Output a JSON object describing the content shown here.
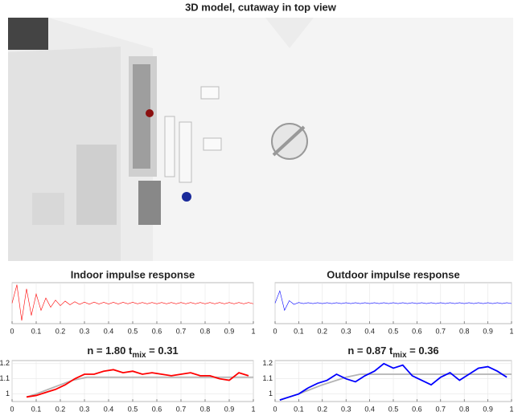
{
  "render": {
    "title": "3D model, cutaway in top view"
  },
  "chart_data": [
    {
      "type": "line",
      "title": "Indoor impulse response",
      "color": "#ff0000",
      "x": [
        0,
        0.02,
        0.04,
        0.06,
        0.08,
        0.1,
        0.12,
        0.14,
        0.16,
        0.18,
        0.2,
        0.22,
        0.24,
        0.26,
        0.28,
        0.3,
        0.32,
        0.34,
        0.36,
        0.38,
        0.4,
        0.42,
        0.44,
        0.46,
        0.48,
        0.5,
        0.52,
        0.54,
        0.56,
        0.58,
        0.6,
        0.62,
        0.64,
        0.66,
        0.68,
        0.7,
        0.72,
        0.74,
        0.76,
        0.78,
        0.8,
        0.82,
        0.84,
        0.86,
        0.88,
        0.9,
        0.92,
        0.94,
        0.96,
        0.98,
        1
      ],
      "values": [
        0,
        0.9,
        -0.85,
        0.7,
        -0.6,
        0.45,
        -0.35,
        0.25,
        -0.2,
        0.15,
        -0.12,
        0.1,
        -0.08,
        0.07,
        -0.06,
        0.05,
        -0.05,
        0.05,
        -0.04,
        0.04,
        -0.04,
        0.04,
        -0.04,
        0.04,
        -0.03,
        0.04,
        -0.03,
        0.03,
        -0.03,
        0.03,
        -0.03,
        0.03,
        -0.03,
        0.03,
        -0.03,
        0.03,
        -0.03,
        0.03,
        -0.03,
        0.03,
        -0.03,
        0.03,
        -0.03,
        0.03,
        -0.03,
        0.03,
        -0.03,
        0.03,
        -0.03,
        0.03,
        -0.03
      ],
      "xlim": [
        0,
        1
      ],
      "ylim": [
        -1,
        1
      ],
      "xticks": [
        0,
        0.1,
        0.2,
        0.3,
        0.4,
        0.5,
        0.6,
        0.7,
        0.8,
        0.9,
        1
      ],
      "grid": true
    },
    {
      "type": "line",
      "title": "Outdoor impulse response",
      "color": "#0000ff",
      "x": [
        0,
        0.02,
        0.04,
        0.06,
        0.08,
        0.1,
        0.12,
        0.14,
        0.16,
        0.18,
        0.2,
        0.22,
        0.24,
        0.26,
        0.28,
        0.3,
        0.32,
        0.34,
        0.36,
        0.38,
        0.4,
        0.42,
        0.44,
        0.46,
        0.48,
        0.5,
        0.52,
        0.54,
        0.56,
        0.58,
        0.6,
        0.62,
        0.64,
        0.66,
        0.68,
        0.7,
        0.72,
        0.74,
        0.76,
        0.78,
        0.8,
        0.82,
        0.84,
        0.86,
        0.88,
        0.9,
        0.92,
        0.94,
        0.96,
        0.98,
        1
      ],
      "values": [
        0,
        0.6,
        -0.35,
        0.12,
        -0.06,
        0.03,
        -0.02,
        0.02,
        -0.02,
        0.02,
        -0.02,
        0.02,
        -0.02,
        0.02,
        -0.02,
        0.02,
        -0.02,
        0.02,
        -0.02,
        0.02,
        -0.02,
        0.02,
        -0.02,
        0.02,
        -0.02,
        0.02,
        -0.02,
        0.02,
        -0.02,
        0.02,
        -0.02,
        0.02,
        -0.02,
        0.02,
        -0.02,
        0.02,
        -0.02,
        0.02,
        -0.02,
        0.02,
        -0.02,
        0.02,
        -0.02,
        0.02,
        -0.02,
        0.02,
        -0.02,
        0.02,
        -0.02,
        0.02,
        -0.02
      ],
      "xlim": [
        0,
        1
      ],
      "ylim": [
        -1,
        1
      ],
      "xticks": [
        0,
        0.1,
        0.2,
        0.3,
        0.4,
        0.5,
        0.6,
        0.7,
        0.8,
        0.9,
        1
      ],
      "grid": true
    },
    {
      "type": "line",
      "title_parts": [
        "n = 1.80 t",
        "mix",
        " = 0.31"
      ],
      "series": [
        {
          "color": "#b4b4b4",
          "x": [
            0.06,
            0.1,
            0.15,
            0.2,
            0.25,
            0.31,
            1
          ],
          "values": [
            0.98,
            1.0,
            1.03,
            1.06,
            1.09,
            1.11,
            1.11
          ]
        },
        {
          "color": "#ff0000",
          "x": [
            0.06,
            0.1,
            0.14,
            0.18,
            0.22,
            0.26,
            0.3,
            0.34,
            0.38,
            0.42,
            0.46,
            0.5,
            0.54,
            0.58,
            0.62,
            0.66,
            0.7,
            0.74,
            0.78,
            0.82,
            0.86,
            0.9,
            0.94,
            0.98
          ],
          "values": [
            0.98,
            0.99,
            1.01,
            1.03,
            1.06,
            1.1,
            1.13,
            1.13,
            1.15,
            1.16,
            1.14,
            1.15,
            1.13,
            1.14,
            1.13,
            1.12,
            1.13,
            1.14,
            1.12,
            1.12,
            1.1,
            1.09,
            1.14,
            1.12
          ]
        }
      ],
      "xlim": [
        0,
        1
      ],
      "ylim": [
        0.95,
        1.22
      ],
      "xticks": [
        0,
        0.1,
        0.2,
        0.3,
        0.4,
        0.5,
        0.6,
        0.7,
        0.8,
        0.9,
        1
      ],
      "yticks": [
        1,
        1.1,
        1.2
      ],
      "grid": true
    },
    {
      "type": "line",
      "title_parts": [
        "n = 0.87 t",
        "mix",
        " = 0.36"
      ],
      "series": [
        {
          "color": "#b4b4b4",
          "x": [
            0.02,
            0.1,
            0.2,
            0.3,
            0.36,
            1
          ],
          "values": [
            0.96,
            1.0,
            1.06,
            1.11,
            1.13,
            1.13
          ]
        },
        {
          "color": "#0000ff",
          "x": [
            0.02,
            0.06,
            0.1,
            0.14,
            0.18,
            0.22,
            0.26,
            0.3,
            0.34,
            0.38,
            0.42,
            0.46,
            0.5,
            0.54,
            0.58,
            0.62,
            0.66,
            0.7,
            0.74,
            0.78,
            0.82,
            0.86,
            0.9,
            0.94,
            0.98
          ],
          "values": [
            0.96,
            0.98,
            1.0,
            1.04,
            1.07,
            1.09,
            1.13,
            1.1,
            1.08,
            1.12,
            1.15,
            1.2,
            1.17,
            1.19,
            1.12,
            1.09,
            1.06,
            1.11,
            1.14,
            1.09,
            1.13,
            1.17,
            1.18,
            1.15,
            1.11
          ]
        }
      ],
      "xlim": [
        0,
        1
      ],
      "ylim": [
        0.95,
        1.22
      ],
      "xticks": [
        0,
        0.1,
        0.2,
        0.3,
        0.4,
        0.5,
        0.6,
        0.7,
        0.8,
        0.9,
        1
      ],
      "yticks": [
        1,
        1.1,
        1.2
      ],
      "grid": true
    }
  ]
}
